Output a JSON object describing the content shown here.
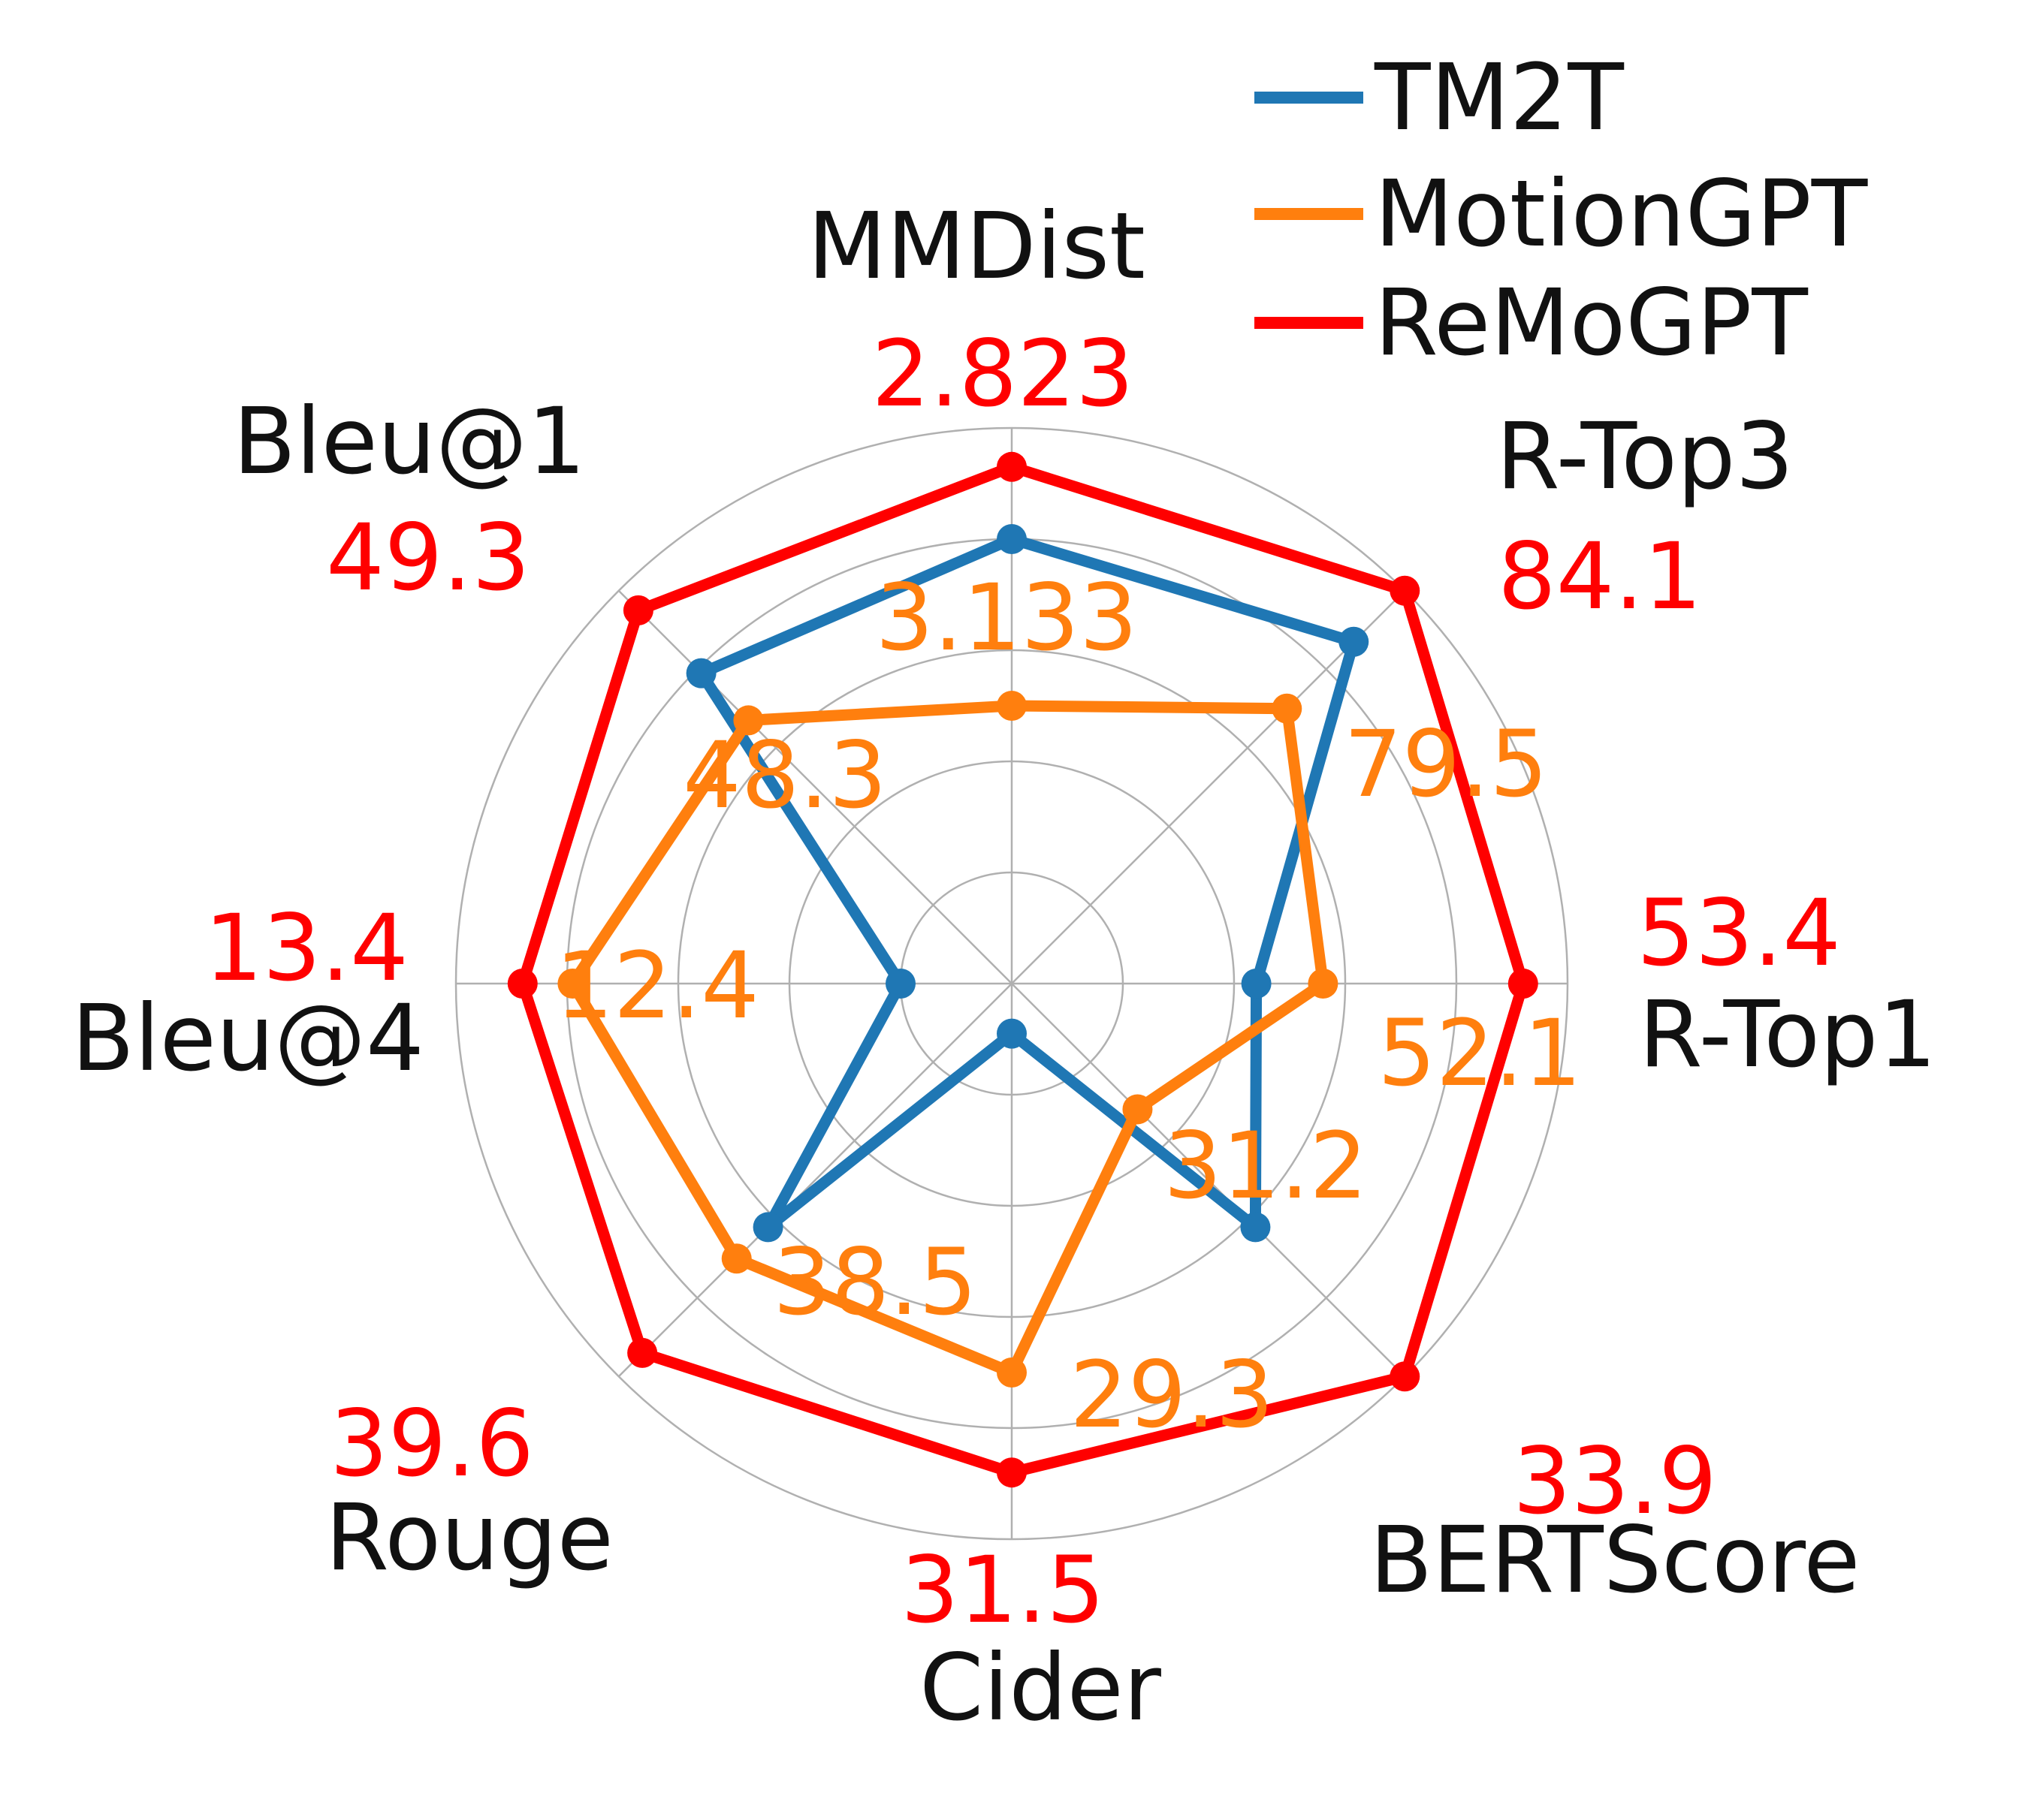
{
  "chart_data": {
    "type": "radar",
    "axes": [
      "MMDist",
      "R-Top3",
      "R-Top1",
      "BERTScore",
      "Cider",
      "Rouge",
      "Bleu@4",
      "Bleu@1"
    ],
    "grid": true,
    "legend_position": "top-right",
    "series": [
      {
        "name": "TM2T",
        "color": "#1f77b4",
        "radius_fraction": [
          0.8,
          0.87,
          0.44,
          0.62,
          0.09,
          0.62,
          0.2,
          0.79
        ]
      },
      {
        "name": "MotionGPT",
        "color": "#ff7f0e",
        "radius_fraction": [
          0.5,
          0.7,
          0.56,
          0.32,
          0.7,
          0.7,
          0.79,
          0.67
        ],
        "labels": [
          "3.133",
          "79.5",
          "52.1",
          "31.2",
          "29.3",
          "38.5",
          "12.4",
          "48.3"
        ]
      },
      {
        "name": "ReMoGPT",
        "color": "#ff0000",
        "radius_fraction": [
          0.93,
          1.0,
          0.92,
          1.0,
          0.88,
          0.94,
          0.88,
          0.95
        ],
        "labels": [
          "2.823",
          "84.1",
          "53.4",
          "33.9",
          "31.5",
          "39.6",
          "13.4",
          "49.3"
        ]
      }
    ]
  }
}
